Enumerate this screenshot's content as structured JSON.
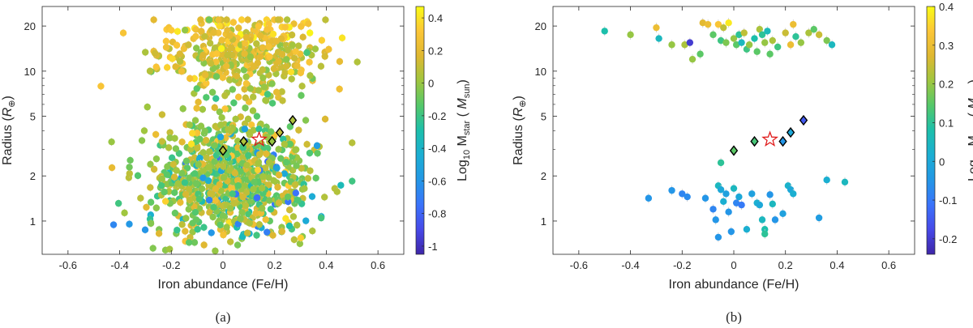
{
  "charts": [
    {
      "caption": "(a)",
      "xlabel": "Iron abundance (Fe/H)",
      "ylabel_main": "Radius (",
      "ylabel_sym": "R",
      "ylabel_sub": "⊕",
      "ylabel_close": ")",
      "cbar_label": "Log",
      "cbar_sub": "10",
      "cbar_mid": " M",
      "cbar_sub2": "star",
      "cbar_unit_open": " ( ",
      "cbar_unit": "M",
      "cbar_unit_sub": "sun",
      "cbar_unit_close": ")",
      "xticks": [
        "-0.6",
        "-0.4",
        "-0.2",
        "0",
        "0.2",
        "0.4",
        "0.6"
      ],
      "yticks": [
        "1",
        "2",
        "5",
        "10",
        "20"
      ],
      "cticks": [
        "0.4",
        "0.2",
        "0",
        "-0.2",
        "-0.4",
        "-0.6",
        "-0.8",
        "-1"
      ]
    },
    {
      "caption": "(b)",
      "xlabel": "Iron abundance (Fe/H)",
      "ylabel_main": "Radius (",
      "ylabel_sym": "R",
      "ylabel_sub": "⊕",
      "ylabel_close": ")",
      "cbar_label": "Log",
      "cbar_sub": "10",
      "cbar_mid": " M",
      "cbar_sub2": "star",
      "cbar_unit_open": " ( ",
      "cbar_unit": "M",
      "cbar_unit_sub": "sun",
      "cbar_unit_close": ")",
      "xticks": [
        "-0.6",
        "-0.4",
        "-0.2",
        "0",
        "0.2",
        "0.4",
        "0.6"
      ],
      "yticks": [
        "1",
        "2",
        "5",
        "10",
        "20"
      ],
      "cticks": [
        "0.4",
        "0.3",
        "0.2",
        "0.1",
        "0",
        "-0.1",
        "-0.2"
      ]
    }
  ],
  "chart_data": [
    {
      "type": "scatter",
      "xlabel": "Iron abundance (Fe/H)",
      "ylabel": "Radius (R⊕)",
      "xlim": [
        -0.7,
        0.7
      ],
      "ylim": [
        0.6,
        27
      ],
      "yscale": "log",
      "colorbar": {
        "label": "Log10 Mstar (Msun)",
        "range": [
          -1.05,
          0.47
        ]
      },
      "grid": false,
      "series": [
        {
          "marker": "diamond",
          "points": [
            {
              "x": 0.0,
              "y": 2.95,
              "c": 0.05
            },
            {
              "x": 0.08,
              "y": 3.4,
              "c": 0.05
            },
            {
              "x": 0.19,
              "y": 3.4,
              "c": 0.0
            },
            {
              "x": 0.22,
              "y": 3.9,
              "c": 0.1
            },
            {
              "x": 0.27,
              "y": 4.7,
              "c": 0.05
            }
          ]
        },
        {
          "marker": "star",
          "points": [
            {
              "x": 0.14,
              "y": 3.5
            }
          ]
        }
      ]
    },
    {
      "type": "scatter",
      "xlabel": "Iron abundance (Fe/H)",
      "ylabel": "Radius (R⊕)",
      "xlim": [
        -0.7,
        0.7
      ],
      "ylim": [
        0.6,
        27
      ],
      "yscale": "log",
      "colorbar": {
        "label": "Log10 Mstar (Msun)",
        "range": [
          -0.24,
          0.4
        ]
      },
      "grid": false,
      "series": [
        {
          "marker": "circle",
          "points": [
            {
              "x": -0.5,
              "y": 18.5,
              "c": 0.08
            },
            {
              "x": -0.4,
              "y": 17.5,
              "c": 0.2
            },
            {
              "x": -0.3,
              "y": 19.5,
              "c": 0.3
            },
            {
              "x": -0.29,
              "y": 16.5,
              "c": 0.05
            },
            {
              "x": -0.24,
              "y": 15.0,
              "c": 0.2
            },
            {
              "x": -0.19,
              "y": 15.0,
              "c": 0.22
            },
            {
              "x": -0.17,
              "y": 15.5,
              "c": -0.2
            },
            {
              "x": -0.16,
              "y": 12.0,
              "c": 0.2
            },
            {
              "x": -0.13,
              "y": 13.0,
              "c": 0.15
            },
            {
              "x": -0.12,
              "y": 21.0,
              "c": 0.28
            },
            {
              "x": -0.1,
              "y": 20.5,
              "c": 0.3
            },
            {
              "x": -0.08,
              "y": 17.5,
              "c": 0.15
            },
            {
              "x": -0.06,
              "y": 20.5,
              "c": 0.33
            },
            {
              "x": -0.05,
              "y": 16.0,
              "c": 0.12
            },
            {
              "x": -0.04,
              "y": 19.5,
              "c": 0.24
            },
            {
              "x": -0.03,
              "y": 15.5,
              "c": 0.18
            },
            {
              "x": -0.02,
              "y": 21.0,
              "c": 0.38
            },
            {
              "x": 0.0,
              "y": 16.5,
              "c": 0.2
            },
            {
              "x": 0.01,
              "y": 15.0,
              "c": 0.15
            },
            {
              "x": 0.02,
              "y": 17.5,
              "c": 0.1
            },
            {
              "x": 0.03,
              "y": 15.5,
              "c": 0.05
            },
            {
              "x": 0.04,
              "y": 18.0,
              "c": 0.24
            },
            {
              "x": 0.05,
              "y": 14.0,
              "c": 0.12
            },
            {
              "x": 0.06,
              "y": 15.0,
              "c": 0.2
            },
            {
              "x": 0.08,
              "y": 16.5,
              "c": 0.08
            },
            {
              "x": 0.09,
              "y": 13.5,
              "c": 0.15
            },
            {
              "x": 0.1,
              "y": 19.0,
              "c": 0.22
            },
            {
              "x": 0.11,
              "y": 17.5,
              "c": 0.1
            },
            {
              "x": 0.12,
              "y": 15.5,
              "c": 0.2
            },
            {
              "x": 0.13,
              "y": 18.5,
              "c": 0.06
            },
            {
              "x": 0.14,
              "y": 13.0,
              "c": 0.15
            },
            {
              "x": 0.15,
              "y": 16.0,
              "c": 0.22
            },
            {
              "x": 0.17,
              "y": 14.5,
              "c": 0.12
            },
            {
              "x": 0.2,
              "y": 18.0,
              "c": 0.25
            },
            {
              "x": 0.22,
              "y": 15.0,
              "c": 0.3
            },
            {
              "x": 0.23,
              "y": 20.5,
              "c": 0.3
            },
            {
              "x": 0.24,
              "y": 17.0,
              "c": 0.1
            },
            {
              "x": 0.26,
              "y": 15.5,
              "c": 0.2
            },
            {
              "x": 0.29,
              "y": 18.0,
              "c": 0.22
            },
            {
              "x": 0.31,
              "y": 19.0,
              "c": 0.15
            },
            {
              "x": 0.33,
              "y": 17.5,
              "c": 0.25
            },
            {
              "x": 0.36,
              "y": 16.0,
              "c": 0.18
            },
            {
              "x": 0.38,
              "y": 15.0,
              "c": 0.05
            },
            {
              "x": -0.05,
              "y": 2.45,
              "c": 0.1
            },
            {
              "x": -0.33,
              "y": 1.42,
              "c": -0.05
            },
            {
              "x": -0.24,
              "y": 1.6,
              "c": -0.05
            },
            {
              "x": -0.2,
              "y": 1.52,
              "c": -0.08
            },
            {
              "x": -0.18,
              "y": 1.45,
              "c": -0.07
            },
            {
              "x": -0.11,
              "y": 1.42,
              "c": -0.05
            },
            {
              "x": -0.08,
              "y": 1.2,
              "c": -0.08
            },
            {
              "x": -0.07,
              "y": 1.02,
              "c": -0.05
            },
            {
              "x": -0.06,
              "y": 1.72,
              "c": 0.05
            },
            {
              "x": -0.05,
              "y": 1.62,
              "c": 0.0
            },
            {
              "x": -0.04,
              "y": 1.35,
              "c": 0.02
            },
            {
              "x": -0.03,
              "y": 1.52,
              "c": -0.02
            },
            {
              "x": -0.02,
              "y": 1.15,
              "c": -0.05
            },
            {
              "x": -0.06,
              "y": 0.78,
              "c": -0.05
            },
            {
              "x": 0.0,
              "y": 1.65,
              "c": 0.05
            },
            {
              "x": 0.01,
              "y": 1.32,
              "c": -0.08
            },
            {
              "x": 0.02,
              "y": 1.45,
              "c": 0.0
            },
            {
              "x": -0.01,
              "y": 0.85,
              "c": -0.05
            },
            {
              "x": 0.03,
              "y": 1.28,
              "c": -0.1
            },
            {
              "x": 0.05,
              "y": 0.88,
              "c": 0.02
            },
            {
              "x": 0.07,
              "y": 1.52,
              "c": -0.02
            },
            {
              "x": 0.09,
              "y": 1.32,
              "c": 0.02
            },
            {
              "x": 0.1,
              "y": 1.28,
              "c": 0.0
            },
            {
              "x": 0.11,
              "y": 1.02,
              "c": 0.05
            },
            {
              "x": 0.12,
              "y": 0.88,
              "c": 0.08
            },
            {
              "x": 0.12,
              "y": 0.82,
              "c": 0.1
            },
            {
              "x": 0.14,
              "y": 1.5,
              "c": -0.05
            },
            {
              "x": 0.15,
              "y": 1.3,
              "c": 0.05
            },
            {
              "x": 0.16,
              "y": 1.02,
              "c": -0.05
            },
            {
              "x": 0.19,
              "y": 1.12,
              "c": -0.02
            },
            {
              "x": 0.21,
              "y": 1.72,
              "c": 0.03
            },
            {
              "x": 0.22,
              "y": 1.62,
              "c": 0.0
            },
            {
              "x": 0.23,
              "y": 1.52,
              "c": 0.02
            },
            {
              "x": 0.33,
              "y": 1.05,
              "c": -0.03
            },
            {
              "x": 0.36,
              "y": 1.88,
              "c": 0.02
            },
            {
              "x": 0.43,
              "y": 1.82,
              "c": 0.05
            }
          ]
        },
        {
          "marker": "diamond",
          "points": [
            {
              "x": 0.0,
              "y": 2.95,
              "c": 0.15
            },
            {
              "x": 0.08,
              "y": 3.4,
              "c": 0.13
            },
            {
              "x": 0.19,
              "y": 3.4,
              "c": -0.05
            },
            {
              "x": 0.22,
              "y": 3.9,
              "c": 0.0
            },
            {
              "x": 0.27,
              "y": 4.7,
              "c": -0.15
            }
          ]
        },
        {
          "marker": "star",
          "points": [
            {
              "x": 0.14,
              "y": 3.5
            }
          ]
        }
      ]
    }
  ]
}
